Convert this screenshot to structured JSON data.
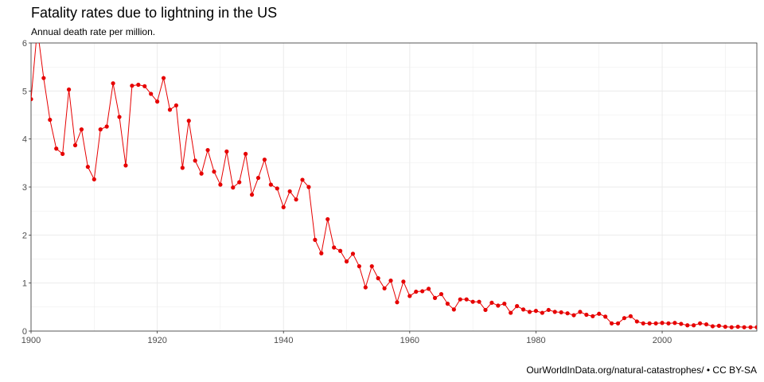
{
  "title": "Fatality rates due to lightning in the US",
  "subtitle": "Annual death rate per million.",
  "source": "OurWorldInData.org/natural-catastrophes/ • CC BY-SA",
  "colors": {
    "series": "#e60000",
    "grid": "#ebebeb",
    "axis": "#333333",
    "text": "#4d4d4d"
  },
  "chart_data": {
    "type": "line",
    "title": "Fatality rates due to lightning in the US",
    "subtitle": "Annual death rate per million.",
    "xlabel": "",
    "ylabel": "",
    "xlim": [
      1900,
      2015
    ],
    "ylim": [
      0,
      6
    ],
    "x_ticks": [
      1900,
      1920,
      1940,
      1960,
      1980,
      2000
    ],
    "y_ticks": [
      0,
      1,
      2,
      3,
      4,
      5,
      6
    ],
    "grid": true,
    "markers": true,
    "x": [
      1900,
      1901,
      1902,
      1903,
      1904,
      1905,
      1906,
      1907,
      1908,
      1909,
      1910,
      1911,
      1912,
      1913,
      1914,
      1915,
      1916,
      1917,
      1918,
      1919,
      1920,
      1921,
      1922,
      1923,
      1924,
      1925,
      1926,
      1927,
      1928,
      1929,
      1930,
      1931,
      1932,
      1933,
      1934,
      1935,
      1936,
      1937,
      1938,
      1939,
      1940,
      1941,
      1942,
      1943,
      1944,
      1945,
      1946,
      1947,
      1948,
      1949,
      1950,
      1951,
      1952,
      1953,
      1954,
      1955,
      1956,
      1957,
      1958,
      1959,
      1960,
      1961,
      1962,
      1963,
      1964,
      1965,
      1966,
      1967,
      1968,
      1969,
      1970,
      1971,
      1972,
      1973,
      1974,
      1975,
      1976,
      1977,
      1978,
      1979,
      1980,
      1981,
      1982,
      1983,
      1984,
      1985,
      1986,
      1987,
      1988,
      1989,
      1990,
      1991,
      1992,
      1993,
      1994,
      1995,
      1996,
      1997,
      1998,
      1999,
      2000,
      2001,
      2002,
      2003,
      2004,
      2005,
      2006,
      2007,
      2008,
      2009,
      2010,
      2011,
      2012,
      2013,
      2014,
      2015
    ],
    "values": [
      4.83,
      6.3,
      5.27,
      4.4,
      3.8,
      3.69,
      5.03,
      3.87,
      4.2,
      3.42,
      3.16,
      4.2,
      4.26,
      5.16,
      4.46,
      3.45,
      5.11,
      5.13,
      5.1,
      4.94,
      4.78,
      5.27,
      4.61,
      4.7,
      3.4,
      4.38,
      3.55,
      3.28,
      3.77,
      3.32,
      3.05,
      3.74,
      2.99,
      3.1,
      3.69,
      2.84,
      3.19,
      3.57,
      3.05,
      2.97,
      2.58,
      2.91,
      2.74,
      3.15,
      3.0,
      1.9,
      1.62,
      2.33,
      1.74,
      1.67,
      1.45,
      1.61,
      1.35,
      0.91,
      1.35,
      1.1,
      0.89,
      1.05,
      0.6,
      1.03,
      0.73,
      0.82,
      0.83,
      0.88,
      0.69,
      0.77,
      0.57,
      0.45,
      0.66,
      0.66,
      0.61,
      0.61,
      0.44,
      0.59,
      0.53,
      0.57,
      0.38,
      0.52,
      0.45,
      0.4,
      0.42,
      0.38,
      0.44,
      0.4,
      0.39,
      0.37,
      0.33,
      0.4,
      0.34,
      0.31,
      0.36,
      0.3,
      0.16,
      0.16,
      0.27,
      0.31,
      0.2,
      0.16,
      0.16,
      0.16,
      0.17,
      0.16,
      0.17,
      0.15,
      0.12,
      0.12,
      0.16,
      0.14,
      0.1,
      0.11,
      0.09,
      0.08,
      0.09,
      0.08,
      0.08,
      0.08
    ]
  }
}
